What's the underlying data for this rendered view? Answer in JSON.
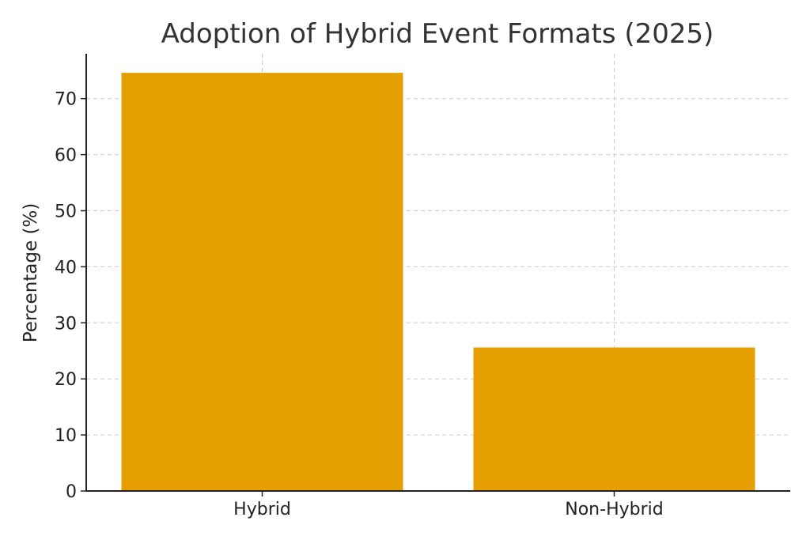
{
  "chart_data": {
    "type": "bar",
    "title": "Adoption of Hybrid Event Formats (2025)",
    "xlabel": "",
    "ylabel": "Percentage (%)",
    "categories": [
      "Hybrid",
      "Non-Hybrid"
    ],
    "values": [
      74.6,
      25.6
    ],
    "ylim": [
      0,
      78
    ],
    "yticks": [
      "0",
      "10",
      "20",
      "30",
      "40",
      "50",
      "60",
      "70"
    ],
    "grid": true,
    "bar_color": "#E69F00"
  }
}
